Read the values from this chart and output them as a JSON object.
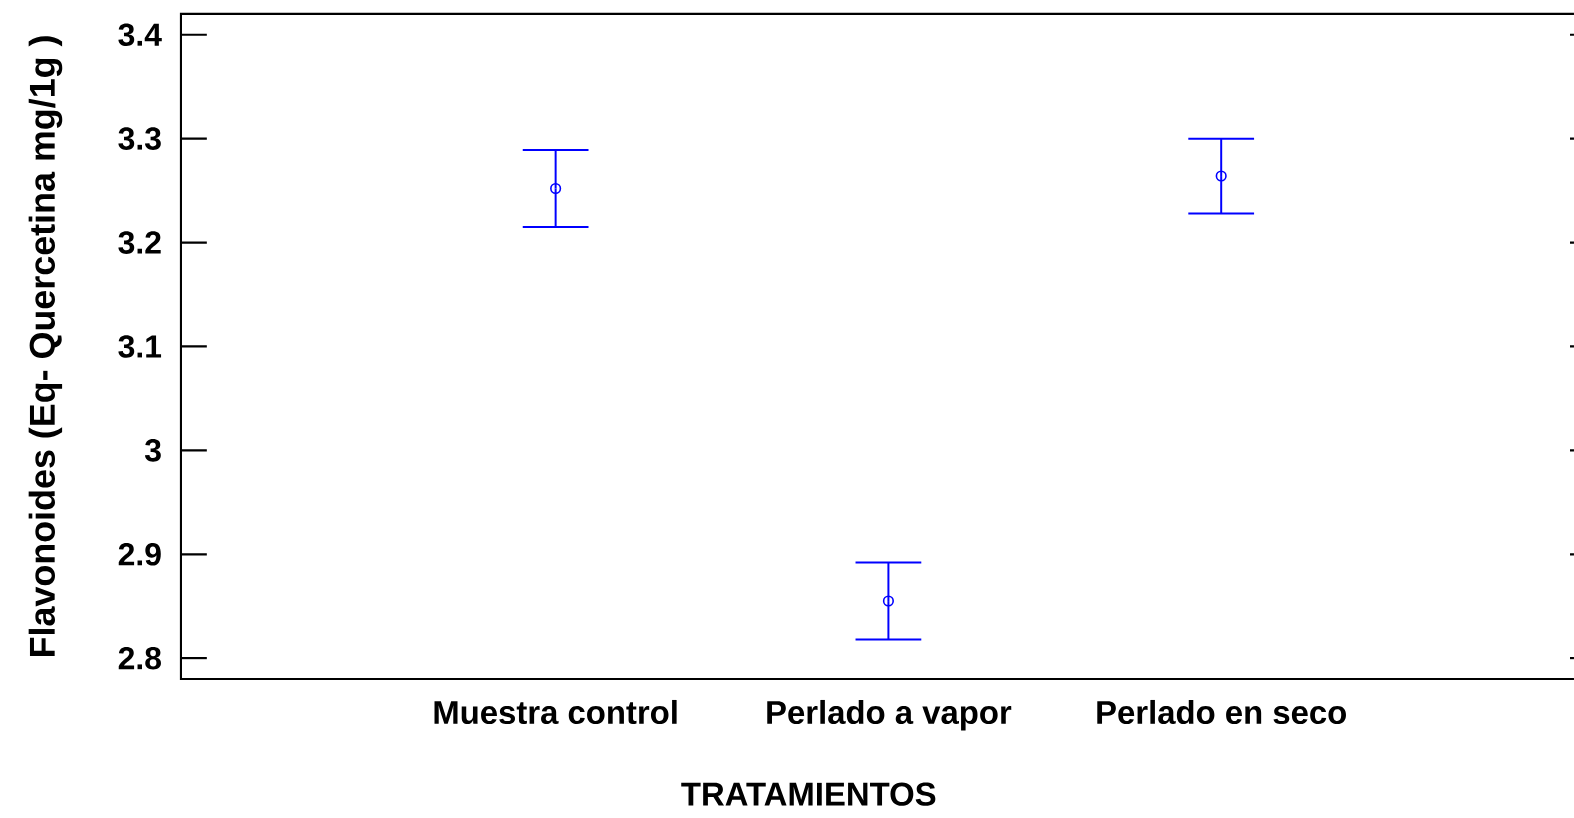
{
  "chart_data": {
    "type": "scatter",
    "xlabel": "TRATAMIENTOS",
    "ylabel": "Flavonoides (Eq- Quercetina mg/1g )",
    "categories": [
      "Muestra control",
      "Perlado a vapor",
      "Perlado en seco"
    ],
    "values": [
      3.252,
      2.855,
      3.264
    ],
    "errors": [
      0.037,
      0.037,
      0.036
    ],
    "color": "#0000ff",
    "marker": "circle",
    "ylim": [
      2.78,
      3.42
    ],
    "yticks": [
      2.8,
      2.9,
      3,
      3.1,
      3.2,
      3.3,
      3.4
    ]
  }
}
